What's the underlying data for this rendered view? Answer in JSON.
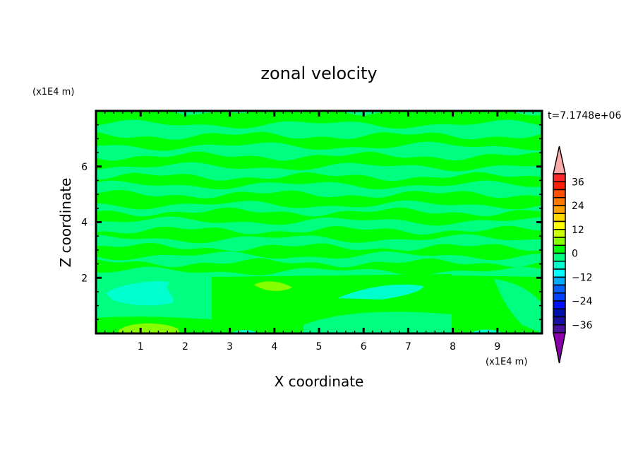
{
  "chart_data": {
    "type": "heatmap",
    "subtype": "filled-contour",
    "title": "zonal velocity",
    "xlabel": "X coordinate",
    "ylabel": "Z coordinate",
    "x_unit": "(x1E4 m)",
    "y_unit": "(x1E4 m)",
    "time_label": "t=7.1748e+06",
    "xlim": [
      0,
      10
    ],
    "ylim": [
      0,
      8
    ],
    "x_ticks": [
      1,
      2,
      3,
      4,
      5,
      6,
      7,
      8,
      9
    ],
    "y_ticks": [
      2,
      4,
      6
    ],
    "grid": false,
    "colorbar": {
      "position": "right",
      "levels": [
        -40,
        -36,
        -32,
        -28,
        -24,
        -20,
        -16,
        -12,
        -8,
        -4,
        0,
        4,
        8,
        12,
        16,
        20,
        24,
        28,
        32,
        36,
        40
      ],
      "tick_labels": [
        "36",
        "24",
        "12",
        "0",
        "-12",
        "-24",
        "-36"
      ],
      "tick_values": [
        36,
        24,
        12,
        0,
        -12,
        -24,
        -36
      ],
      "colors_top_to_bottom": [
        "#ff2828",
        "#ff2000",
        "#ff5000",
        "#ff7800",
        "#ffa000",
        "#ffd800",
        "#ffff00",
        "#ccff00",
        "#88ff00",
        "#00ff00",
        "#00ff80",
        "#00ffcc",
        "#00ffff",
        "#00aaff",
        "#0060ff",
        "#0040ff",
        "#0010ff",
        "#0010aa",
        "#1810a0",
        "#4810a0"
      ],
      "over_color": "#ffaaaa",
      "under_color": "#8800aa"
    },
    "field_summary": {
      "dominant_ranges": [
        "0 to 4",
        "-4 to 0"
      ],
      "pattern": "horizontal alternating layers of 0 to 4 and -4 to 0 above z=2; patches of -8 to -4 near x=1-2 and x=5.5-7 at z~1.5; 4 to 8 patches near x=4, z~1.7 and x=1-2, z~0.2",
      "colors": {
        "pos_0_4": "#00ff00",
        "neg_4_0": "#00ff80",
        "neg_8_4": "#00ffcc",
        "pos_4_8": "#88ff00"
      }
    }
  }
}
